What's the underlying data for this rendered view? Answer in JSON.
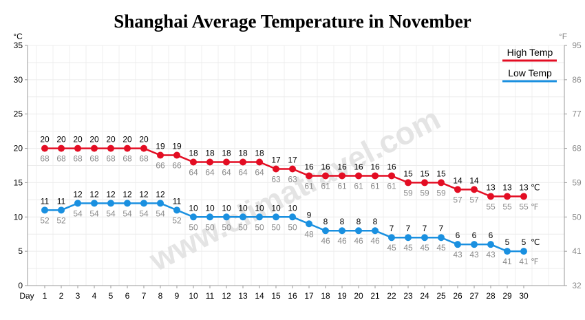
{
  "chart_data": {
    "type": "line",
    "title": "Shanghai Average Temperature in November",
    "xlabel": "Day",
    "left_unit": "°C",
    "right_unit": "°F",
    "x": [
      1,
      2,
      3,
      4,
      5,
      6,
      7,
      8,
      9,
      10,
      11,
      12,
      13,
      14,
      15,
      16,
      17,
      18,
      19,
      20,
      21,
      22,
      23,
      24,
      25,
      26,
      27,
      28,
      29,
      30
    ],
    "ylim": [
      0,
      35
    ],
    "yticks": [
      0,
      5,
      10,
      15,
      20,
      25,
      30,
      35
    ],
    "right_ylim": [
      32,
      95
    ],
    "right_yticks": [
      32,
      41,
      50,
      59,
      68,
      77,
      86,
      95
    ],
    "grid": true,
    "legend_position": "top-right",
    "series": [
      {
        "name": "High Temp",
        "color": "#e30d23",
        "values": [
          20,
          20,
          20,
          20,
          20,
          20,
          20,
          19,
          19,
          18,
          18,
          18,
          18,
          18,
          17,
          17,
          16,
          16,
          16,
          16,
          16,
          16,
          15,
          15,
          15,
          14,
          14,
          13,
          13,
          13
        ],
        "values_f": [
          68,
          68,
          68,
          68,
          68,
          68,
          68,
          66,
          66,
          64,
          64,
          64,
          64,
          64,
          63,
          63,
          61,
          61,
          61,
          61,
          61,
          61,
          59,
          59,
          59,
          57,
          57,
          55,
          55,
          55
        ]
      },
      {
        "name": "Low Temp",
        "color": "#1a90e0",
        "values": [
          11,
          11,
          12,
          12,
          12,
          12,
          12,
          12,
          11,
          10,
          10,
          10,
          10,
          10,
          10,
          10,
          9,
          8,
          8,
          8,
          8,
          7,
          7,
          7,
          7,
          6,
          6,
          6,
          5,
          5
        ],
        "values_f": [
          52,
          52,
          54,
          54,
          54,
          54,
          54,
          54,
          52,
          50,
          50,
          50,
          50,
          50,
          50,
          50,
          48,
          46,
          46,
          46,
          46,
          45,
          45,
          45,
          45,
          43,
          43,
          43,
          41,
          41
        ]
      }
    ],
    "end_unit_c": "℃",
    "end_unit_f": "℉"
  },
  "watermark": "www.climatravel.com"
}
